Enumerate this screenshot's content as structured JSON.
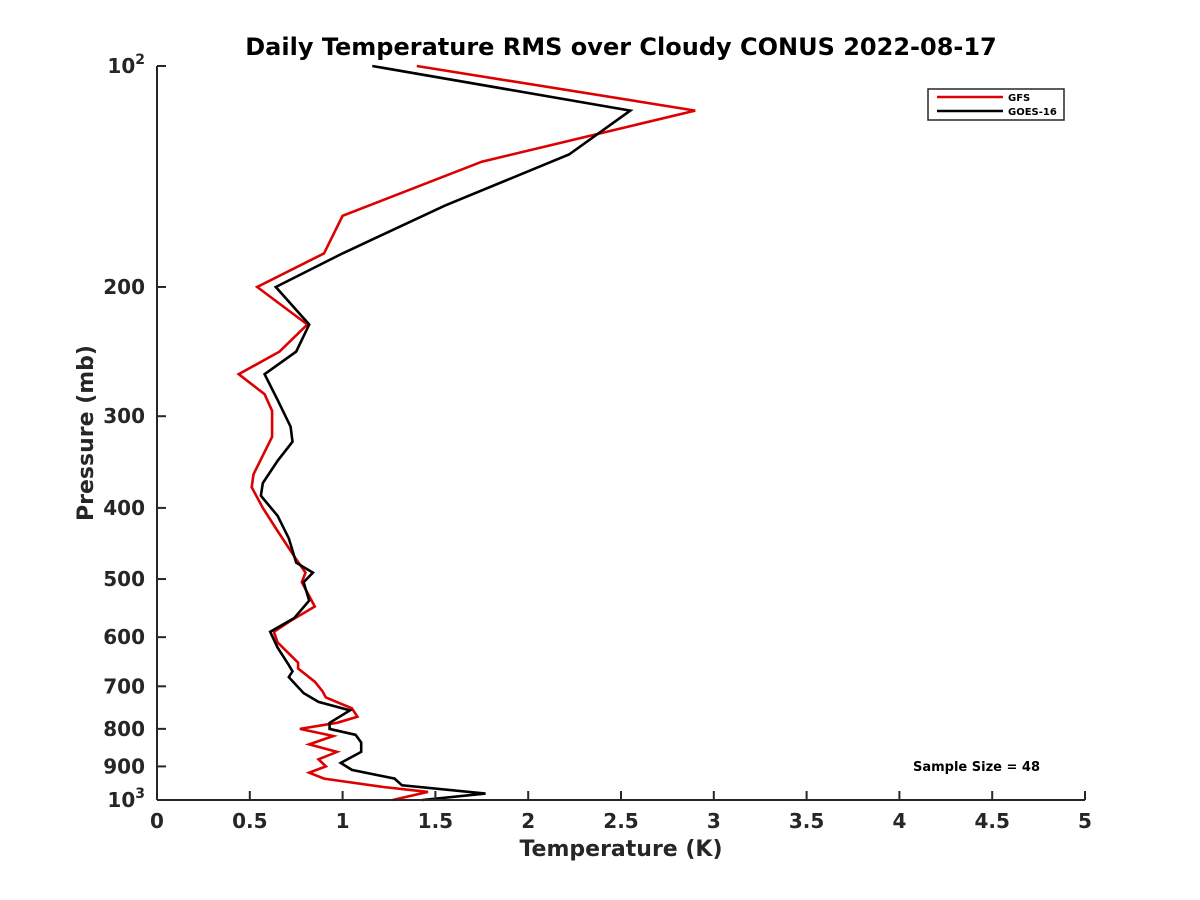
{
  "chart_data": {
    "type": "line",
    "title": "Daily Temperature RMS over Cloudy CONUS 2022-08-17",
    "xlabel": "Temperature (K)",
    "ylabel": "Pressure (mb)",
    "xlim": [
      0,
      5
    ],
    "ylim": [
      100,
      1000
    ],
    "y_scale": "log",
    "y_reversed": true,
    "grid": false,
    "x_ticks": [
      0,
      0.5,
      1,
      1.5,
      2,
      2.5,
      3,
      3.5,
      4,
      4.5,
      5
    ],
    "x_tick_labels": [
      "0",
      "0.5",
      "1",
      "1.5",
      "2",
      "2.5",
      "3",
      "3.5",
      "4",
      "4.5",
      "5"
    ],
    "y_ticks": [
      {
        "value": 100,
        "base": "10",
        "exp": "2"
      },
      {
        "value": 200,
        "label": "200"
      },
      {
        "value": 300,
        "label": "300"
      },
      {
        "value": 400,
        "label": "400"
      },
      {
        "value": 500,
        "label": "500"
      },
      {
        "value": 600,
        "label": "600"
      },
      {
        "value": 700,
        "label": "700"
      },
      {
        "value": 800,
        "label": "800"
      },
      {
        "value": 900,
        "label": "900"
      },
      {
        "value": 1000,
        "base": "10",
        "exp": "3"
      }
    ],
    "legend_position": "top-right",
    "series": [
      {
        "name": "GFS",
        "color": "#dd0000",
        "points": [
          [
            1.4,
            100
          ],
          [
            2.9,
            115
          ],
          [
            1.75,
            135
          ],
          [
            1.0,
            160
          ],
          [
            0.9,
            180
          ],
          [
            0.54,
            200
          ],
          [
            0.81,
            225
          ],
          [
            0.66,
            245
          ],
          [
            0.44,
            263
          ],
          [
            0.58,
            280
          ],
          [
            0.62,
            295
          ],
          [
            0.62,
            320
          ],
          [
            0.52,
            360
          ],
          [
            0.51,
            375
          ],
          [
            0.57,
            400
          ],
          [
            0.65,
            430
          ],
          [
            0.75,
            470
          ],
          [
            0.8,
            490
          ],
          [
            0.78,
            505
          ],
          [
            0.85,
            545
          ],
          [
            0.72,
            570
          ],
          [
            0.63,
            590
          ],
          [
            0.65,
            610
          ],
          [
            0.76,
            650
          ],
          [
            0.76,
            662
          ],
          [
            0.85,
            690
          ],
          [
            0.89,
            710
          ],
          [
            0.91,
            725
          ],
          [
            1.05,
            750
          ],
          [
            1.08,
            770
          ],
          [
            0.97,
            785
          ],
          [
            0.77,
            800
          ],
          [
            0.95,
            818
          ],
          [
            0.82,
            840
          ],
          [
            0.97,
            860
          ],
          [
            0.87,
            880
          ],
          [
            0.91,
            900
          ],
          [
            0.82,
            918
          ],
          [
            0.9,
            935
          ],
          [
            1.22,
            960
          ],
          [
            1.46,
            975
          ],
          [
            1.27,
            1000
          ]
        ]
      },
      {
        "name": "GOES-16",
        "color": "#000000",
        "points": [
          [
            1.16,
            100
          ],
          [
            2.55,
            115
          ],
          [
            2.22,
            132
          ],
          [
            1.55,
            155
          ],
          [
            1.0,
            180
          ],
          [
            0.64,
            200
          ],
          [
            0.82,
            225
          ],
          [
            0.75,
            245
          ],
          [
            0.58,
            263
          ],
          [
            0.65,
            285
          ],
          [
            0.72,
            310
          ],
          [
            0.73,
            325
          ],
          [
            0.65,
            345
          ],
          [
            0.57,
            370
          ],
          [
            0.56,
            385
          ],
          [
            0.65,
            410
          ],
          [
            0.71,
            440
          ],
          [
            0.75,
            475
          ],
          [
            0.84,
            490
          ],
          [
            0.79,
            505
          ],
          [
            0.82,
            535
          ],
          [
            0.74,
            565
          ],
          [
            0.61,
            590
          ],
          [
            0.65,
            620
          ],
          [
            0.71,
            655
          ],
          [
            0.73,
            668
          ],
          [
            0.71,
            680
          ],
          [
            0.79,
            715
          ],
          [
            0.87,
            735
          ],
          [
            1.04,
            755
          ],
          [
            0.93,
            785
          ],
          [
            0.93,
            800
          ],
          [
            1.07,
            815
          ],
          [
            1.1,
            835
          ],
          [
            1.1,
            860
          ],
          [
            0.99,
            890
          ],
          [
            1.05,
            910
          ],
          [
            1.28,
            935
          ],
          [
            1.32,
            955
          ],
          [
            1.77,
            980
          ],
          [
            1.43,
            1000
          ]
        ]
      }
    ],
    "annotations": [
      "Sample Size = 48"
    ]
  }
}
